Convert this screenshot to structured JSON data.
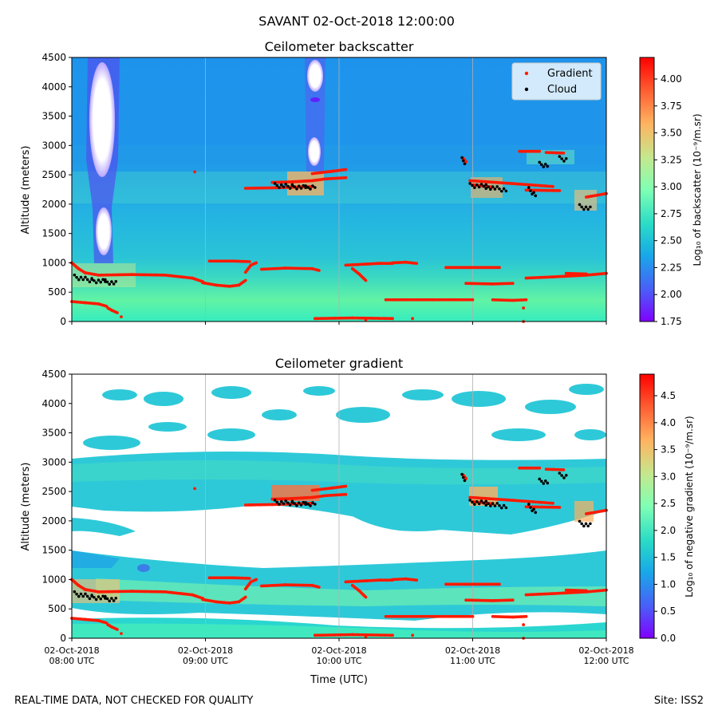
{
  "figure": {
    "suptitle": "SAVANT 02-Oct-2018 12:00:00",
    "footer_left": "REAL-TIME DATA, NOT CHECKED FOR QUALITY",
    "footer_right": "Site: ISS2",
    "colors": {
      "gradient_marker": "#ff1a00",
      "cloud_marker": "#000000",
      "grid": "#b0b0b0",
      "colormap": "rainbow"
    }
  },
  "chart_data": [
    {
      "type": "heatmap",
      "title": "Ceilometer backscatter",
      "xlabel": "",
      "ylabel": "Altitude (meters)",
      "ylim": [
        0,
        4500
      ],
      "yticks": [
        0,
        500,
        1000,
        1500,
        2000,
        2500,
        3000,
        3500,
        4000,
        4500
      ],
      "xlim": [
        "2018-10-02 08:00",
        "2018-10-02 12:00"
      ],
      "xticks": [
        "2018-10-02 08:00",
        "2018-10-02 09:00",
        "2018-10-02 10:00",
        "2018-10-02 11:00",
        "2018-10-02 12:00"
      ],
      "xtick_labels_shown": false,
      "grid": "vertical",
      "colorbar": {
        "label": "Log₁₀ of backscatter (10⁻⁹/m.sr)",
        "range": [
          1.75,
          4.2
        ],
        "ticks": [
          "1.75",
          "2.00",
          "2.25",
          "2.50",
          "2.75",
          "3.00",
          "3.25",
          "3.50",
          "3.75",
          "4.00"
        ]
      },
      "legend": {
        "placement": "top-right",
        "entries": [
          {
            "label": "Gradient",
            "color": "#ff1a00"
          },
          {
            "label": "Cloud",
            "color": "#000000"
          }
        ]
      }
    },
    {
      "type": "heatmap",
      "title": "Ceilometer gradient",
      "xlabel": "Time (UTC)",
      "ylabel": "Altitude (meters)",
      "ylim": [
        0,
        4500
      ],
      "yticks": [
        0,
        500,
        1000,
        1500,
        2000,
        2500,
        3000,
        3500,
        4000,
        4500
      ],
      "xlim": [
        "2018-10-02 08:00",
        "2018-10-02 12:00"
      ],
      "xticks": [
        "2018-10-02 08:00",
        "2018-10-02 09:00",
        "2018-10-02 10:00",
        "2018-10-02 11:00",
        "2018-10-02 12:00"
      ],
      "xtick_labels": [
        [
          "02-Oct-2018",
          "08:00 UTC"
        ],
        [
          "02-Oct-2018",
          "09:00 UTC"
        ],
        [
          "02-Oct-2018",
          "10:00 UTC"
        ],
        [
          "02-Oct-2018",
          "11:00 UTC"
        ],
        [
          "02-Oct-2018",
          "12:00 UTC"
        ]
      ],
      "grid": "vertical",
      "colorbar": {
        "label": "Log₁₀ of negative gradient (10⁻⁹/m.sr)",
        "range": [
          0.0,
          4.9
        ],
        "ticks": [
          "0.0",
          "0.5",
          "1.0",
          "1.5",
          "2.0",
          "2.5",
          "3.0",
          "3.5",
          "4.0",
          "4.5"
        ]
      }
    }
  ],
  "series": {
    "gradient": [
      {
        "t": [
          0.0,
          0.05,
          0.1,
          0.2
        ],
        "alt": [
          1000,
          900,
          830,
          790
        ]
      },
      {
        "t": [
          0.2,
          0.45,
          0.7,
          0.9,
          0.98
        ],
        "alt": [
          790,
          800,
          790,
          740,
          680
        ]
      },
      {
        "t": [
          0.98,
          1.08,
          1.18,
          1.25,
          1.3
        ],
        "alt": [
          660,
          620,
          600,
          620,
          700
        ]
      },
      {
        "t": [
          1.3,
          1.34,
          1.38
        ],
        "alt": [
          840,
          960,
          1000
        ]
      },
      {
        "t": [
          1.03,
          1.2,
          1.33
        ],
        "alt": [
          1030,
          1030,
          1020
        ]
      },
      {
        "t": [
          1.42,
          1.6,
          1.8,
          1.85
        ],
        "alt": [
          890,
          910,
          900,
          870
        ]
      },
      {
        "t": [
          0.0,
          0.1,
          0.2,
          0.26
        ],
        "alt": [
          340,
          320,
          300,
          260
        ]
      },
      {
        "t": [
          0.27,
          0.3,
          0.34
        ],
        "alt": [
          230,
          190,
          150
        ]
      },
      {
        "t": [
          1.3,
          1.55,
          1.8
        ],
        "alt": [
          2270,
          2280,
          2300
        ]
      },
      {
        "t": [
          1.5,
          1.65,
          1.8,
          1.9,
          2.05
        ],
        "alt": [
          2370,
          2380,
          2400,
          2430,
          2450
        ]
      },
      {
        "t": [
          1.8,
          1.95,
          2.05
        ],
        "alt": [
          2520,
          2560,
          2590
        ]
      },
      {
        "t": [
          2.05,
          2.3,
          2.4
        ],
        "alt": [
          960,
          990,
          990
        ]
      },
      {
        "t": [
          2.4,
          2.5,
          2.58
        ],
        "alt": [
          1000,
          1010,
          990
        ]
      },
      {
        "t": [
          2.1,
          2.15,
          2.2
        ],
        "alt": [
          900,
          810,
          700
        ]
      },
      {
        "t": [
          2.35,
          2.7,
          3.0
        ],
        "alt": [
          370,
          370,
          370
        ]
      },
      {
        "t": [
          2.8,
          3.2
        ],
        "alt": [
          920,
          920
        ]
      },
      {
        "t": [
          2.95,
          3.15,
          3.3
        ],
        "alt": [
          650,
          640,
          650
        ]
      },
      {
        "t": [
          3.15,
          3.3,
          3.4
        ],
        "alt": [
          370,
          360,
          370
        ]
      },
      {
        "t": [
          1.82,
          2.1,
          2.4
        ],
        "alt": [
          50,
          60,
          50
        ]
      },
      {
        "t": [
          2.98,
          3.3,
          3.6
        ],
        "alt": [
          2400,
          2350,
          2300
        ]
      },
      {
        "t": [
          3.0,
          3.15
        ],
        "alt": [
          2330,
          2290
        ]
      },
      {
        "t": [
          3.4,
          3.65
        ],
        "alt": [
          2240,
          2230
        ]
      },
      {
        "t": [
          3.85,
          4.0
        ],
        "alt": [
          2120,
          2180
        ]
      },
      {
        "t": [
          3.4,
          3.6,
          3.85,
          4.0
        ],
        "alt": [
          740,
          760,
          790,
          820
        ]
      },
      {
        "t": [
          3.7,
          3.85
        ],
        "alt": [
          820,
          810
        ]
      },
      {
        "t": [
          3.35,
          3.5
        ],
        "alt": [
          2900,
          2900
        ]
      },
      {
        "t": [
          3.55,
          3.68
        ],
        "alt": [
          2880,
          2870
        ]
      },
      {
        "t": [
          2.93,
          2.95
        ],
        "alt": [
          2780,
          2720
        ]
      }
    ],
    "gradient_points": [
      {
        "t": 0.92,
        "alt": 2550
      },
      {
        "t": 3.38,
        "alt": 230
      },
      {
        "t": 3.38,
        "alt": 0
      },
      {
        "t": 0.37,
        "alt": 80
      },
      {
        "t": 2.2,
        "alt": 30
      },
      {
        "t": 2.55,
        "alt": 50
      }
    ],
    "cloud": [
      {
        "t": [
          0.02,
          0.15,
          0.25,
          0.33
        ],
        "alt": [
          760,
          700,
          680,
          650
        ]
      },
      {
        "t": [
          1.52,
          1.65,
          1.75,
          1.82
        ],
        "alt": [
          2320,
          2300,
          2280,
          2300
        ]
      },
      {
        "t": [
          2.98,
          3.1,
          3.25
        ],
        "alt": [
          2320,
          2300,
          2240
        ]
      },
      {
        "t": [
          3.42,
          3.47
        ],
        "alt": [
          2250,
          2160
        ]
      },
      {
        "t": [
          3.5,
          3.56
        ],
        "alt": [
          2680,
          2660
        ]
      },
      {
        "t": [
          3.65,
          3.7
        ],
        "alt": [
          2780,
          2760
        ]
      },
      {
        "t": [
          3.8,
          3.88
        ],
        "alt": [
          1960,
          1920
        ]
      },
      {
        "t": [
          2.92,
          2.94
        ],
        "alt": [
          2760,
          2720
        ]
      }
    ]
  }
}
